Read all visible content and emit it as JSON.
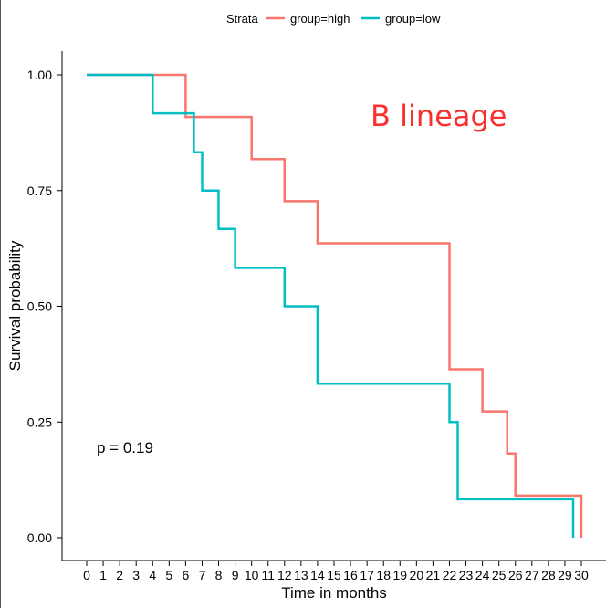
{
  "chart_data": {
    "type": "line",
    "subtype": "kaplan-meier step",
    "title": "",
    "xlabel": "Time in months",
    "ylabel": "Survival probability",
    "xlim": [
      0,
      30
    ],
    "ylim": [
      0,
      1
    ],
    "x_ticks": [
      0,
      1,
      2,
      3,
      4,
      5,
      6,
      7,
      8,
      9,
      10,
      11,
      12,
      13,
      14,
      15,
      16,
      17,
      18,
      19,
      20,
      21,
      22,
      23,
      24,
      25,
      26,
      27,
      28,
      29,
      30
    ],
    "y_ticks": [
      0,
      0.25,
      0.5,
      0.75,
      1.0
    ],
    "y_tick_labels": [
      "0.00",
      "0.25",
      "0.50",
      "0.75",
      "1.00"
    ],
    "grid": false,
    "legend": {
      "title": "Strata",
      "placement": "top",
      "entries": [
        "group=high",
        "group=low"
      ]
    },
    "series": [
      {
        "name": "group=high",
        "color": "#F8766D",
        "x": [
          0,
          6,
          10,
          12,
          14,
          22,
          24,
          25.5,
          26,
          30
        ],
        "y": [
          1.0,
          0.909,
          0.818,
          0.727,
          0.636,
          0.364,
          0.273,
          0.182,
          0.091,
          0.0
        ]
      },
      {
        "name": "group=low",
        "color": "#00BFC4",
        "x": [
          0,
          4,
          6.5,
          7,
          8,
          9,
          12,
          14,
          22,
          22.5,
          29.5
        ],
        "y": [
          1.0,
          0.917,
          0.833,
          0.75,
          0.667,
          0.583,
          0.5,
          0.333,
          0.25,
          0.083,
          0.0
        ]
      }
    ],
    "annotations": [
      {
        "text": "B lineage",
        "color": "#F8312F"
      },
      {
        "text": "p = 0.19",
        "color": "#000000"
      }
    ]
  }
}
